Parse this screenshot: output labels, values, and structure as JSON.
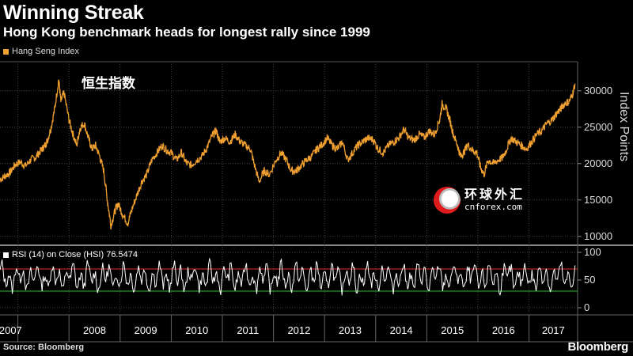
{
  "title": "Winning Streak",
  "subtitle": "Hong Kong benchmark heads for longest rally since 1999",
  "legend": {
    "series_name": "Hang Seng Index",
    "color": "#f0a030"
  },
  "annotation": "恒生指数",
  "watermark": {
    "cn_text": "环球外汇",
    "en_text": "cnforex.com"
  },
  "source": "Source: Bloomberg",
  "brand": "Bloomberg",
  "rsi_panel": {
    "label": "RSI (14) on Close (HSI) 76.5474",
    "color": "#ffffff"
  },
  "chart_data": [
    {
      "type": "line",
      "title": "Winning Streak",
      "subtitle": "Hong Kong benchmark heads for longest rally since 1999",
      "ylabel": "Index Points",
      "xlabel": "",
      "ylim": [
        9000,
        34000
      ],
      "yticks": [
        10000,
        15000,
        20000,
        25000,
        30000
      ],
      "xlim": [
        2006.65,
        2017.95
      ],
      "xticks": [
        "2007",
        "2008",
        "2009",
        "2010",
        "2011",
        "2012",
        "2013",
        "2014",
        "2015",
        "2016",
        "2017"
      ],
      "grid": true,
      "legend_position": "top-left",
      "series": [
        {
          "name": "Hang Seng Index",
          "color": "#f0a030",
          "points": [
            [
              2006.65,
              17800
            ],
            [
              2006.75,
              18300
            ],
            [
              2006.85,
              18800
            ],
            [
              2006.95,
              19900
            ],
            [
              2007.05,
              20200
            ],
            [
              2007.15,
              19700
            ],
            [
              2007.25,
              20500
            ],
            [
              2007.35,
              20900
            ],
            [
              2007.45,
              21800
            ],
            [
              2007.52,
              22400
            ],
            [
              2007.58,
              23200
            ],
            [
              2007.65,
              25000
            ],
            [
              2007.72,
              27500
            ],
            [
              2007.8,
              31600
            ],
            [
              2007.84,
              28500
            ],
            [
              2007.9,
              29800
            ],
            [
              2008.0,
              26000
            ],
            [
              2008.08,
              24000
            ],
            [
              2008.15,
              22500
            ],
            [
              2008.22,
              25000
            ],
            [
              2008.3,
              25500
            ],
            [
              2008.38,
              23500
            ],
            [
              2008.45,
              22000
            ],
            [
              2008.52,
              22500
            ],
            [
              2008.6,
              21000
            ],
            [
              2008.68,
              19000
            ],
            [
              2008.75,
              15000
            ],
            [
              2008.82,
              11500
            ],
            [
              2008.9,
              13500
            ],
            [
              2008.96,
              14500
            ],
            [
              2009.05,
              13000
            ],
            [
              2009.15,
              11800
            ],
            [
              2009.22,
              13500
            ],
            [
              2009.32,
              15500
            ],
            [
              2009.42,
              17500
            ],
            [
              2009.52,
              18500
            ],
            [
              2009.62,
              20500
            ],
            [
              2009.72,
              21500
            ],
            [
              2009.82,
              22500
            ],
            [
              2009.92,
              21800
            ],
            [
              2010.0,
              21500
            ],
            [
              2010.1,
              20500
            ],
            [
              2010.2,
              21500
            ],
            [
              2010.3,
              20000
            ],
            [
              2010.4,
              19800
            ],
            [
              2010.5,
              20500
            ],
            [
              2010.6,
              21000
            ],
            [
              2010.7,
              22200
            ],
            [
              2010.8,
              23800
            ],
            [
              2010.88,
              24500
            ],
            [
              2010.95,
              23000
            ],
            [
              2011.05,
              23500
            ],
            [
              2011.15,
              23000
            ],
            [
              2011.25,
              24000
            ],
            [
              2011.35,
              23000
            ],
            [
              2011.45,
              22500
            ],
            [
              2011.55,
              22000
            ],
            [
              2011.62,
              20000
            ],
            [
              2011.72,
              17500
            ],
            [
              2011.82,
              19000
            ],
            [
              2011.92,
              18500
            ],
            [
              2012.05,
              20500
            ],
            [
              2012.15,
              21500
            ],
            [
              2012.25,
              20500
            ],
            [
              2012.35,
              19000
            ],
            [
              2012.45,
              19000
            ],
            [
              2012.55,
              19800
            ],
            [
              2012.65,
              20500
            ],
            [
              2012.75,
              21000
            ],
            [
              2012.85,
              22000
            ],
            [
              2012.95,
              22600
            ],
            [
              2013.05,
              23500
            ],
            [
              2013.15,
              22500
            ],
            [
              2013.25,
              22000
            ],
            [
              2013.35,
              23000
            ],
            [
              2013.45,
              20500
            ],
            [
              2013.55,
              21500
            ],
            [
              2013.65,
              22500
            ],
            [
              2013.75,
              23000
            ],
            [
              2013.85,
              23500
            ],
            [
              2013.95,
              23300
            ],
            [
              2014.05,
              22000
            ],
            [
              2014.15,
              21500
            ],
            [
              2014.25,
              22500
            ],
            [
              2014.35,
              23000
            ],
            [
              2014.45,
              23500
            ],
            [
              2014.55,
              24700
            ],
            [
              2014.65,
              23500
            ],
            [
              2014.75,
              23200
            ],
            [
              2014.85,
              24000
            ],
            [
              2014.95,
              23600
            ],
            [
              2015.05,
              24500
            ],
            [
              2015.15,
              24000
            ],
            [
              2015.25,
              26000
            ],
            [
              2015.3,
              28200
            ],
            [
              2015.38,
              27500
            ],
            [
              2015.45,
              26000
            ],
            [
              2015.52,
              24000
            ],
            [
              2015.6,
              22500
            ],
            [
              2015.66,
              21000
            ],
            [
              2015.72,
              21500
            ],
            [
              2015.8,
              22600
            ],
            [
              2015.9,
              21800
            ],
            [
              2015.98,
              21500
            ],
            [
              2016.05,
              19500
            ],
            [
              2016.12,
              18500
            ],
            [
              2016.2,
              20500
            ],
            [
              2016.3,
              20000
            ],
            [
              2016.4,
              20500
            ],
            [
              2016.48,
              20800
            ],
            [
              2016.55,
              21800
            ],
            [
              2016.65,
              23500
            ],
            [
              2016.75,
              23000
            ],
            [
              2016.85,
              22500
            ],
            [
              2016.95,
              22000
            ],
            [
              2017.05,
              23000
            ],
            [
              2017.15,
              24000
            ],
            [
              2017.25,
              24500
            ],
            [
              2017.35,
              25500
            ],
            [
              2017.45,
              26000
            ],
            [
              2017.55,
              27000
            ],
            [
              2017.62,
              27500
            ],
            [
              2017.7,
              28300
            ],
            [
              2017.78,
              28500
            ],
            [
              2017.85,
              29500
            ],
            [
              2017.9,
              31000
            ]
          ]
        }
      ]
    },
    {
      "type": "line",
      "title": "RSI (14) on Close (HSI) 76.5474",
      "ylim": [
        -10,
        110
      ],
      "yticks": [
        0,
        50,
        100
      ],
      "xlim": [
        2006.65,
        2017.95
      ],
      "reference_lines": [
        {
          "value": 70,
          "color": "#e03030"
        },
        {
          "value": 30,
          "color": "#30c030"
        }
      ],
      "grid": true,
      "series": [
        {
          "name": "RSI (14) on Close (HSI)",
          "color": "#ffffff",
          "base": 55,
          "last_value": 76.5474
        }
      ]
    }
  ]
}
